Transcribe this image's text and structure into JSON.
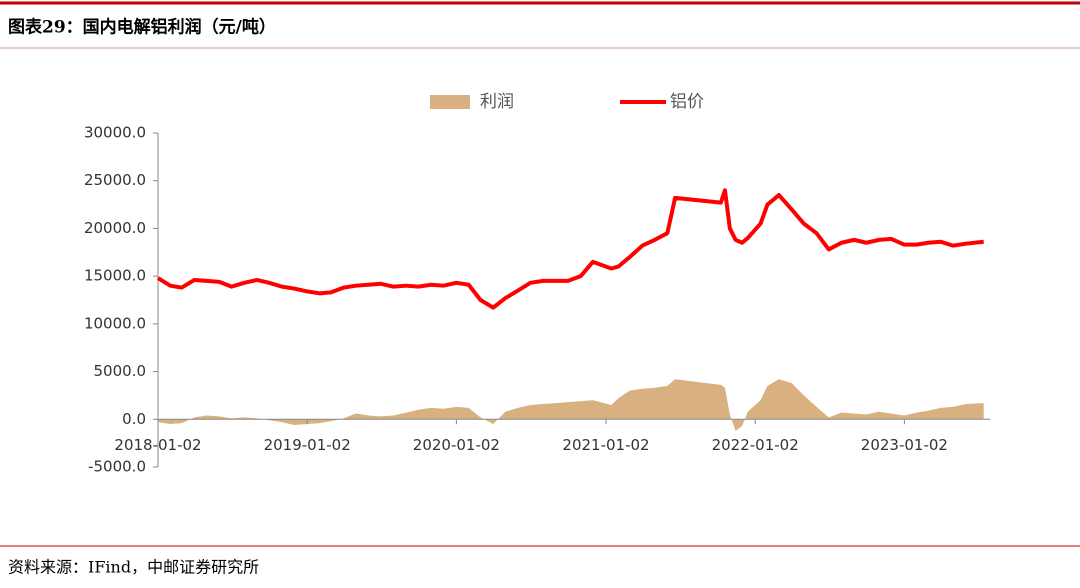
{
  "header": {
    "title": "图表29：国内电解铝利润（元/吨）"
  },
  "footer": {
    "source": "资料来源：IFind，中邮证券研究所"
  },
  "chart_data": {
    "type": "line-area",
    "x": [
      "2018-01-02",
      "2018-02-01",
      "2018-03-01",
      "2018-04-01",
      "2018-05-01",
      "2018-06-01",
      "2018-07-01",
      "2018-08-01",
      "2018-09-01",
      "2018-10-01",
      "2018-11-01",
      "2018-12-01",
      "2019-01-02",
      "2019-02-01",
      "2019-03-01",
      "2019-04-01",
      "2019-05-01",
      "2019-06-01",
      "2019-07-01",
      "2019-08-01",
      "2019-09-01",
      "2019-10-01",
      "2019-11-01",
      "2019-12-01",
      "2020-01-02",
      "2020-02-01",
      "2020-03-01",
      "2020-04-01",
      "2020-05-01",
      "2020-06-01",
      "2020-07-01",
      "2020-08-01",
      "2020-09-01",
      "2020-10-01",
      "2020-11-01",
      "2020-12-01",
      "2021-01-15",
      "2021-02-01",
      "2021-03-01",
      "2021-04-01",
      "2021-05-01",
      "2021-06-01",
      "2021-06-20",
      "2021-10-10",
      "2021-10-20",
      "2021-11-01",
      "2021-11-15",
      "2021-12-01",
      "2021-12-15",
      "2022-01-15",
      "2022-02-01",
      "2022-03-01",
      "2022-04-01",
      "2022-05-01",
      "2022-06-01",
      "2022-07-01",
      "2022-08-01",
      "2022-09-01",
      "2022-10-01",
      "2022-11-01",
      "2022-12-01",
      "2023-01-02",
      "2023-02-01",
      "2023-03-01",
      "2023-04-01",
      "2023-05-01",
      "2023-06-01",
      "2023-07-15"
    ],
    "series": [
      {
        "name": "利润",
        "kind": "area",
        "color": "#d9b07f",
        "values": [
          -300,
          -500,
          -400,
          200,
          400,
          300,
          100,
          200,
          100,
          -100,
          -300,
          -600,
          -500,
          -400,
          -200,
          100,
          600,
          400,
          300,
          400,
          700,
          1000,
          1200,
          1100,
          1300,
          1200,
          200,
          -500,
          800,
          1200,
          1500,
          1600,
          1700,
          1800,
          1900,
          2000,
          1500,
          2200,
          3000,
          3200,
          3300,
          3500,
          4200,
          3600,
          3300,
          500,
          -1200,
          -700,
          800,
          2000,
          3500,
          4200,
          3800,
          2500,
          1300,
          200,
          700,
          600,
          500,
          800,
          600,
          400,
          700,
          900,
          1200,
          1300,
          1600,
          1700
        ]
      },
      {
        "name": "铝价",
        "kind": "line",
        "color": "#ff0000",
        "values": [
          14800,
          14000,
          13800,
          14600,
          14500,
          14400,
          13900,
          14300,
          14600,
          14300,
          13900,
          13700,
          13400,
          13200,
          13300,
          13800,
          14000,
          14100,
          14200,
          13900,
          14000,
          13900,
          14100,
          14000,
          14300,
          14100,
          12500,
          11700,
          12700,
          13500,
          14300,
          14500,
          14500,
          14500,
          15000,
          16500,
          15800,
          16000,
          17000,
          18200,
          18800,
          19500,
          23200,
          22700,
          24000,
          20000,
          18800,
          18500,
          19000,
          20500,
          22500,
          23500,
          22000,
          20500,
          19500,
          17800,
          18500,
          18800,
          18500,
          18800,
          18900,
          18300,
          18300,
          18500,
          18600,
          18200,
          18400,
          18600
        ]
      }
    ],
    "xlim": [
      "2018-01-02",
      "2023-07-31"
    ],
    "xticks": [
      "2018-01-02",
      "2019-01-02",
      "2020-01-02",
      "2021-01-02",
      "2022-01-02",
      "2023-01-02"
    ],
    "ylim": [
      -5000,
      30000
    ],
    "yticks": [
      {
        "value": -5000,
        "label": "-5000.0"
      },
      {
        "value": 0,
        "label": "0.0"
      },
      {
        "value": 5000,
        "label": "5000.0"
      },
      {
        "value": 10000,
        "label": "10000.0"
      },
      {
        "value": 15000,
        "label": "15000.0"
      },
      {
        "value": 20000,
        "label": "20000.0"
      },
      {
        "value": 25000,
        "label": "25000.0"
      },
      {
        "value": 30000,
        "label": "30000.0"
      }
    ]
  }
}
